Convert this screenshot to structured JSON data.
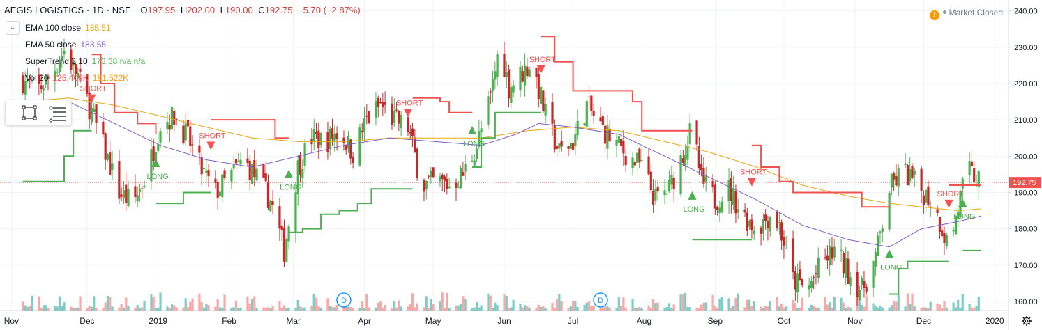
{
  "header": {
    "symbol": "AEGIS LOGISTICS · 1D · NSE",
    "o_label": "O",
    "o": "197.95",
    "h_label": "H",
    "h": "202.00",
    "l_label": "L",
    "l": "190.00",
    "c_label": "C",
    "c": "192.75",
    "change": "−5.70 (−2.87%)"
  },
  "legend": [
    {
      "label": "EMA 100 close",
      "value": "185.51",
      "color": "#e6a817"
    },
    {
      "label": "EMA 50 close",
      "value": "183.55",
      "color": "#7c5cc4"
    },
    {
      "label": "SuperTrend 3 10",
      "value": "173.38  n/a  n/a",
      "color": "#4caf50",
      "value2_color": "#ef5350"
    },
    {
      "label": "Vol 20",
      "value": "125.409K",
      "value2": "181.522K",
      "color": "#ef5350",
      "value2_color": "#ff9800"
    }
  ],
  "market_status": "Market Closed",
  "toolbar": {
    "collapse_icon": "chevron-down-icon",
    "tools": [
      "rectangle-tool-icon",
      "fib-lines-icon"
    ]
  },
  "colors": {
    "up": "#26a69a",
    "down": "#ef5350",
    "candle_up": "#4caf50",
    "candle_down": "#c62828",
    "ema100": "#e6a817",
    "ema50": "#7c5cc4",
    "st_long": "#4caf50",
    "st_short": "#ef5350"
  },
  "chart_data": {
    "type": "candlestick",
    "price_axis": {
      "ticks": [
        160,
        170,
        180,
        190,
        200,
        210,
        220,
        230,
        240
      ],
      "tick_labels": [
        "160.00",
        "170.00",
        "180.00",
        "190.00",
        "200.00",
        "210.00",
        "220.00",
        "230.00",
        "240.00"
      ],
      "range": [
        157.5,
        243.0
      ],
      "last_price": 192.75,
      "last_label": "192.75"
    },
    "time_axis": {
      "labels": [
        "Nov",
        "Dec",
        "2019",
        "Feb",
        "Mar",
        "Apr",
        "May",
        "Jun",
        "Jul",
        "Aug",
        "Sep",
        "Oct",
        "Nov",
        "Dec",
        "2020"
      ],
      "label_days": [
        -5,
        28,
        59,
        90,
        118,
        149,
        179,
        210,
        240,
        271,
        302,
        332,
        363,
        393,
        424
      ]
    },
    "grid": true,
    "price_path": [
      [
        0,
        221
      ],
      [
        6,
        218
      ],
      [
        12,
        222
      ],
      [
        18,
        229
      ],
      [
        24,
        222
      ],
      [
        30,
        212
      ],
      [
        36,
        201
      ],
      [
        42,
        190
      ],
      [
        48,
        187
      ],
      [
        54,
        195
      ],
      [
        60,
        209
      ],
      [
        66,
        211
      ],
      [
        72,
        205
      ],
      [
        78,
        196
      ],
      [
        84,
        190
      ],
      [
        90,
        194
      ],
      [
        96,
        199
      ],
      [
        102,
        194
      ],
      [
        108,
        188
      ],
      [
        114,
        174
      ],
      [
        120,
        197
      ],
      [
        126,
        205
      ],
      [
        132,
        204
      ],
      [
        138,
        207
      ],
      [
        144,
        201
      ],
      [
        150,
        210
      ],
      [
        156,
        214
      ],
      [
        162,
        210
      ],
      [
        168,
        208
      ],
      [
        174,
        192
      ],
      [
        180,
        193
      ],
      [
        186,
        192
      ],
      [
        192,
        195
      ],
      [
        198,
        203
      ],
      [
        204,
        216
      ],
      [
        208,
        231
      ],
      [
        212,
        219
      ],
      [
        218,
        223
      ],
      [
        222,
        226
      ],
      [
        228,
        211
      ],
      [
        234,
        201
      ],
      [
        240,
        204
      ],
      [
        246,
        214
      ],
      [
        252,
        208
      ],
      [
        258,
        204
      ],
      [
        264,
        200
      ],
      [
        270,
        197
      ],
      [
        276,
        188
      ],
      [
        282,
        191
      ],
      [
        288,
        201
      ],
      [
        292,
        208
      ],
      [
        296,
        193
      ],
      [
        302,
        188
      ],
      [
        308,
        191
      ],
      [
        314,
        184
      ],
      [
        320,
        180
      ],
      [
        326,
        184
      ],
      [
        330,
        181
      ],
      [
        336,
        166
      ],
      [
        342,
        163
      ],
      [
        348,
        170
      ],
      [
        354,
        174
      ],
      [
        360,
        168
      ],
      [
        366,
        163
      ],
      [
        372,
        172
      ],
      [
        378,
        191
      ],
      [
        384,
        196
      ],
      [
        390,
        192
      ],
      [
        396,
        188
      ],
      [
        400,
        182
      ],
      [
        404,
        175
      ],
      [
        408,
        186
      ],
      [
        412,
        196
      ],
      [
        418,
        192.75
      ]
    ],
    "ema50": [
      [
        0,
        213
      ],
      [
        20,
        215
      ],
      [
        40,
        209
      ],
      [
        60,
        203
      ],
      [
        80,
        199
      ],
      [
        100,
        197
      ],
      [
        120,
        200
      ],
      [
        140,
        203
      ],
      [
        160,
        205
      ],
      [
        180,
        204
      ],
      [
        200,
        203
      ],
      [
        215,
        206
      ],
      [
        225,
        209
      ],
      [
        240,
        208
      ],
      [
        260,
        206
      ],
      [
        280,
        200
      ],
      [
        300,
        194
      ],
      [
        320,
        188
      ],
      [
        340,
        181
      ],
      [
        360,
        177
      ],
      [
        378,
        175
      ],
      [
        392,
        180
      ],
      [
        408,
        182
      ],
      [
        418,
        183.55
      ]
    ],
    "ema100": [
      [
        0,
        215
      ],
      [
        20,
        216
      ],
      [
        40,
        214
      ],
      [
        60,
        211
      ],
      [
        80,
        208
      ],
      [
        100,
        205
      ],
      [
        120,
        204
      ],
      [
        140,
        204
      ],
      [
        160,
        205
      ],
      [
        180,
        205
      ],
      [
        200,
        205
      ],
      [
        220,
        207
      ],
      [
        240,
        208
      ],
      [
        260,
        207
      ],
      [
        280,
        204
      ],
      [
        300,
        201
      ],
      [
        320,
        197
      ],
      [
        340,
        192
      ],
      [
        360,
        189
      ],
      [
        378,
        187
      ],
      [
        392,
        186
      ],
      [
        408,
        185
      ],
      [
        418,
        185.51
      ]
    ],
    "supertrend_segments": [
      {
        "dir": "long",
        "points": [
          [
            0,
            193
          ],
          [
            14,
            193
          ],
          [
            18,
            200
          ],
          [
            22,
            207
          ],
          [
            30,
            207
          ]
        ]
      },
      {
        "dir": "short",
        "points": [
          [
            30,
            228
          ],
          [
            34,
            220
          ],
          [
            40,
            212
          ],
          [
            50,
            209
          ],
          [
            58,
            206
          ]
        ]
      },
      {
        "dir": "long",
        "points": [
          [
            58,
            187
          ],
          [
            64,
            187
          ],
          [
            70,
            190
          ],
          [
            82,
            190
          ]
        ]
      },
      {
        "dir": "short",
        "points": [
          [
            82,
            210
          ],
          [
            102,
            210
          ],
          [
            110,
            205
          ],
          [
            116,
            205
          ]
        ]
      },
      {
        "dir": "long",
        "points": [
          [
            116,
            179
          ],
          [
            122,
            180
          ],
          [
            130,
            184
          ],
          [
            138,
            185
          ],
          [
            146,
            187
          ],
          [
            152,
            191
          ],
          [
            170,
            191
          ]
        ]
      },
      {
        "dir": "short",
        "points": [
          [
            170,
            216
          ],
          [
            182,
            215
          ],
          [
            186,
            212
          ],
          [
            196,
            212
          ]
        ]
      },
      {
        "dir": "long",
        "points": [
          [
            196,
            197
          ],
          [
            200,
            205
          ],
          [
            206,
            212
          ],
          [
            226,
            212
          ]
        ]
      },
      {
        "dir": "short",
        "points": [
          [
            226,
            233
          ],
          [
            232,
            226
          ],
          [
            240,
            218
          ],
          [
            258,
            218
          ],
          [
            266,
            215
          ],
          [
            270,
            207
          ],
          [
            292,
            207
          ]
        ]
      },
      {
        "dir": "long",
        "points": [
          [
            292,
            177
          ],
          [
            302,
            177
          ],
          [
            318,
            177
          ]
        ]
      },
      {
        "dir": "short",
        "points": [
          [
            318,
            203
          ],
          [
            322,
            197
          ],
          [
            330,
            193
          ],
          [
            336,
            190
          ],
          [
            360,
            190
          ],
          [
            366,
            186
          ],
          [
            378,
            186
          ]
        ]
      },
      {
        "dir": "long",
        "points": [
          [
            378,
            162
          ],
          [
            382,
            169
          ],
          [
            386,
            171
          ],
          [
            404,
            171
          ]
        ]
      },
      {
        "dir": "short",
        "points": [
          [
            404,
            192
          ],
          [
            410,
            192
          ],
          [
            418,
            192
          ]
        ]
      },
      {
        "dir": "long",
        "points": [
          [
            410,
            174
          ],
          [
            418,
            174
          ]
        ]
      }
    ],
    "signals": [
      {
        "type": "SHORT",
        "day": 30,
        "price": 217
      },
      {
        "type": "LONG",
        "day": 58,
        "price": 197
      },
      {
        "type": "SHORT",
        "day": 82,
        "price": 204
      },
      {
        "type": "LONG",
        "day": 116,
        "price": 194
      },
      {
        "type": "SHORT",
        "day": 168,
        "price": 213
      },
      {
        "type": "LONG",
        "day": 196,
        "price": 206
      },
      {
        "type": "SHORT",
        "day": 226,
        "price": 225
      },
      {
        "type": "LONG",
        "day": 292,
        "price": 188
      },
      {
        "type": "SHORT",
        "day": 318,
        "price": 194
      },
      {
        "type": "LONG",
        "day": 378,
        "price": 172
      },
      {
        "type": "SHORT",
        "day": 404,
        "price": 188
      },
      {
        "type": "LONG",
        "day": 410,
        "price": 186
      }
    ],
    "events": [
      {
        "label": "D",
        "day": 140
      },
      {
        "label": "D",
        "day": 252
      }
    ]
  }
}
